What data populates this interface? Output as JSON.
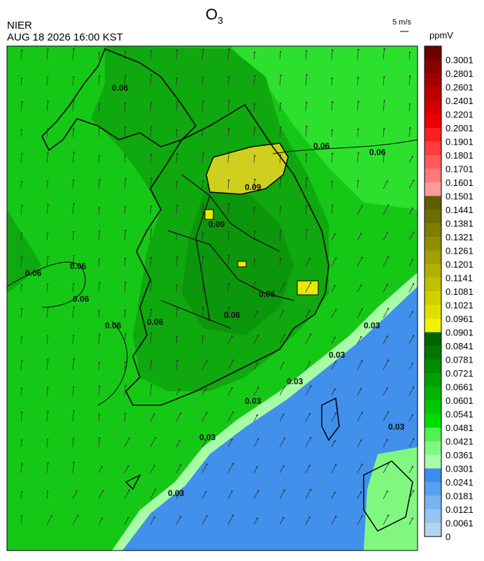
{
  "header": {
    "title": {
      "main": "O",
      "sub": "3"
    },
    "agency": "NIER",
    "datetime": "AUG 18 2026 16:00 KST",
    "wind_scale": "5 m/s"
  },
  "colorbar": {
    "unit": "ppmV",
    "levels": [
      {
        "label": "0.3001",
        "color": "#6e0000"
      },
      {
        "label": "0.2801",
        "color": "#8a0000"
      },
      {
        "label": "0.2601",
        "color": "#a40000"
      },
      {
        "label": "0.2401",
        "color": "#be0000"
      },
      {
        "label": "0.2201",
        "color": "#d40000"
      },
      {
        "label": "0.2001",
        "color": "#ec0000"
      },
      {
        "label": "0.1901",
        "color": "#ff1e1e"
      },
      {
        "label": "0.1801",
        "color": "#ff3c3c"
      },
      {
        "label": "0.1701",
        "color": "#ff5a5a"
      },
      {
        "label": "0.1601",
        "color": "#ff7878"
      },
      {
        "label": "0.1501",
        "color": "#ff9a9a"
      },
      {
        "label": "0.1441",
        "color": "#5e5e00"
      },
      {
        "label": "0.1381",
        "color": "#6e6e00"
      },
      {
        "label": "0.1321",
        "color": "#7e7e00"
      },
      {
        "label": "0.1261",
        "color": "#8e8e00"
      },
      {
        "label": "0.1201",
        "color": "#a0a000"
      },
      {
        "label": "0.1141",
        "color": "#b0b000"
      },
      {
        "label": "0.1081",
        "color": "#c0c000"
      },
      {
        "label": "0.1021",
        "color": "#d0d000"
      },
      {
        "label": "0.0961",
        "color": "#e0e000"
      },
      {
        "label": "0.0901",
        "color": "#f2f200"
      },
      {
        "label": "0.0841",
        "color": "#006400"
      },
      {
        "label": "0.0781",
        "color": "#007800"
      },
      {
        "label": "0.0721",
        "color": "#008c00"
      },
      {
        "label": "0.0661",
        "color": "#00a000"
      },
      {
        "label": "0.0601",
        "color": "#00b400"
      },
      {
        "label": "0.0541",
        "color": "#00c800"
      },
      {
        "label": "0.0481",
        "color": "#00dc00"
      },
      {
        "label": "0.0421",
        "color": "#50f050"
      },
      {
        "label": "0.0361",
        "color": "#80f880"
      },
      {
        "label": "0.0301",
        "color": "#a8fca8"
      },
      {
        "label": "0.0241",
        "color": "#3c8cf0"
      },
      {
        "label": "0.0181",
        "color": "#5aa0f0"
      },
      {
        "label": "0.0121",
        "color": "#78b4f0"
      },
      {
        "label": "0.0061",
        "color": "#96c4f0"
      },
      {
        "label": "0",
        "color": "#b4d4f0"
      }
    ]
  },
  "contour_labels": [
    "0.06",
    "0.06",
    "0.06",
    "0.06",
    "0.06",
    "0.09",
    "0.09",
    "0.06",
    "0.06",
    "0.06",
    "0.06",
    "0.06",
    "0.03",
    "0.03",
    "0.03",
    "0.03",
    "0.03",
    "0.03",
    "0.03"
  ]
}
